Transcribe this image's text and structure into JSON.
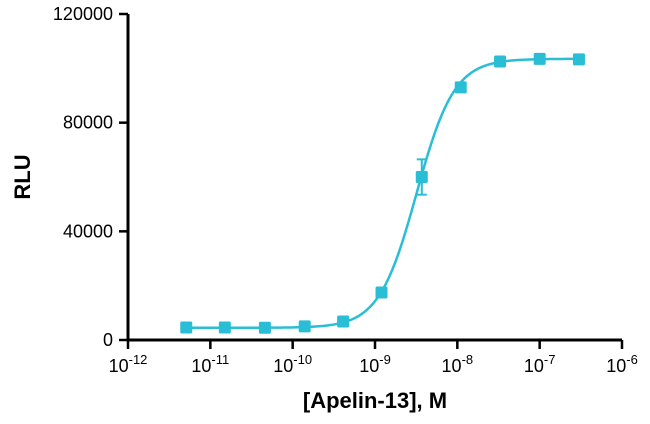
{
  "chart_data": {
    "type": "scatter",
    "title": "",
    "xlabel": "[Apelin-13], M",
    "ylabel": "RLU",
    "x_scale": "log10",
    "x_exponent_min": -12,
    "x_exponent_max": -6,
    "x_tick_exponents": [
      -12,
      -11,
      -10,
      -9,
      -8,
      -7,
      -6
    ],
    "ylim": [
      0,
      120000
    ],
    "y_ticks": [
      0,
      40000,
      80000,
      120000
    ],
    "grid": false,
    "legend": "none",
    "colors": {
      "series": "#29BDD6",
      "axis": "#000000",
      "text": "#000000"
    },
    "series": [
      {
        "name": "Apelin-13",
        "marker": "square",
        "points": [
          {
            "x": 5.1e-12,
            "y": 4600,
            "err": 0
          },
          {
            "x": 1.5e-11,
            "y": 4600,
            "err": 0
          },
          {
            "x": 4.6e-11,
            "y": 4500,
            "err": 0
          },
          {
            "x": 1.4e-10,
            "y": 5000,
            "err": 0
          },
          {
            "x": 4.1e-10,
            "y": 6800,
            "err": 0
          },
          {
            "x": 1.2e-09,
            "y": 17500,
            "err": 800
          },
          {
            "x": 3.7e-09,
            "y": 60000,
            "err": 6500
          },
          {
            "x": 1.1e-08,
            "y": 93000,
            "err": 1500
          },
          {
            "x": 3.3e-08,
            "y": 102500,
            "err": 900
          },
          {
            "x": 1e-07,
            "y": 103500,
            "err": 0
          },
          {
            "x": 3e-07,
            "y": 103300,
            "err": 0
          }
        ],
        "fit": {
          "model": "4PL",
          "bottom": 4500,
          "top": 103500,
          "ec50": 3.2e-09,
          "hill": 1.9
        }
      }
    ]
  }
}
